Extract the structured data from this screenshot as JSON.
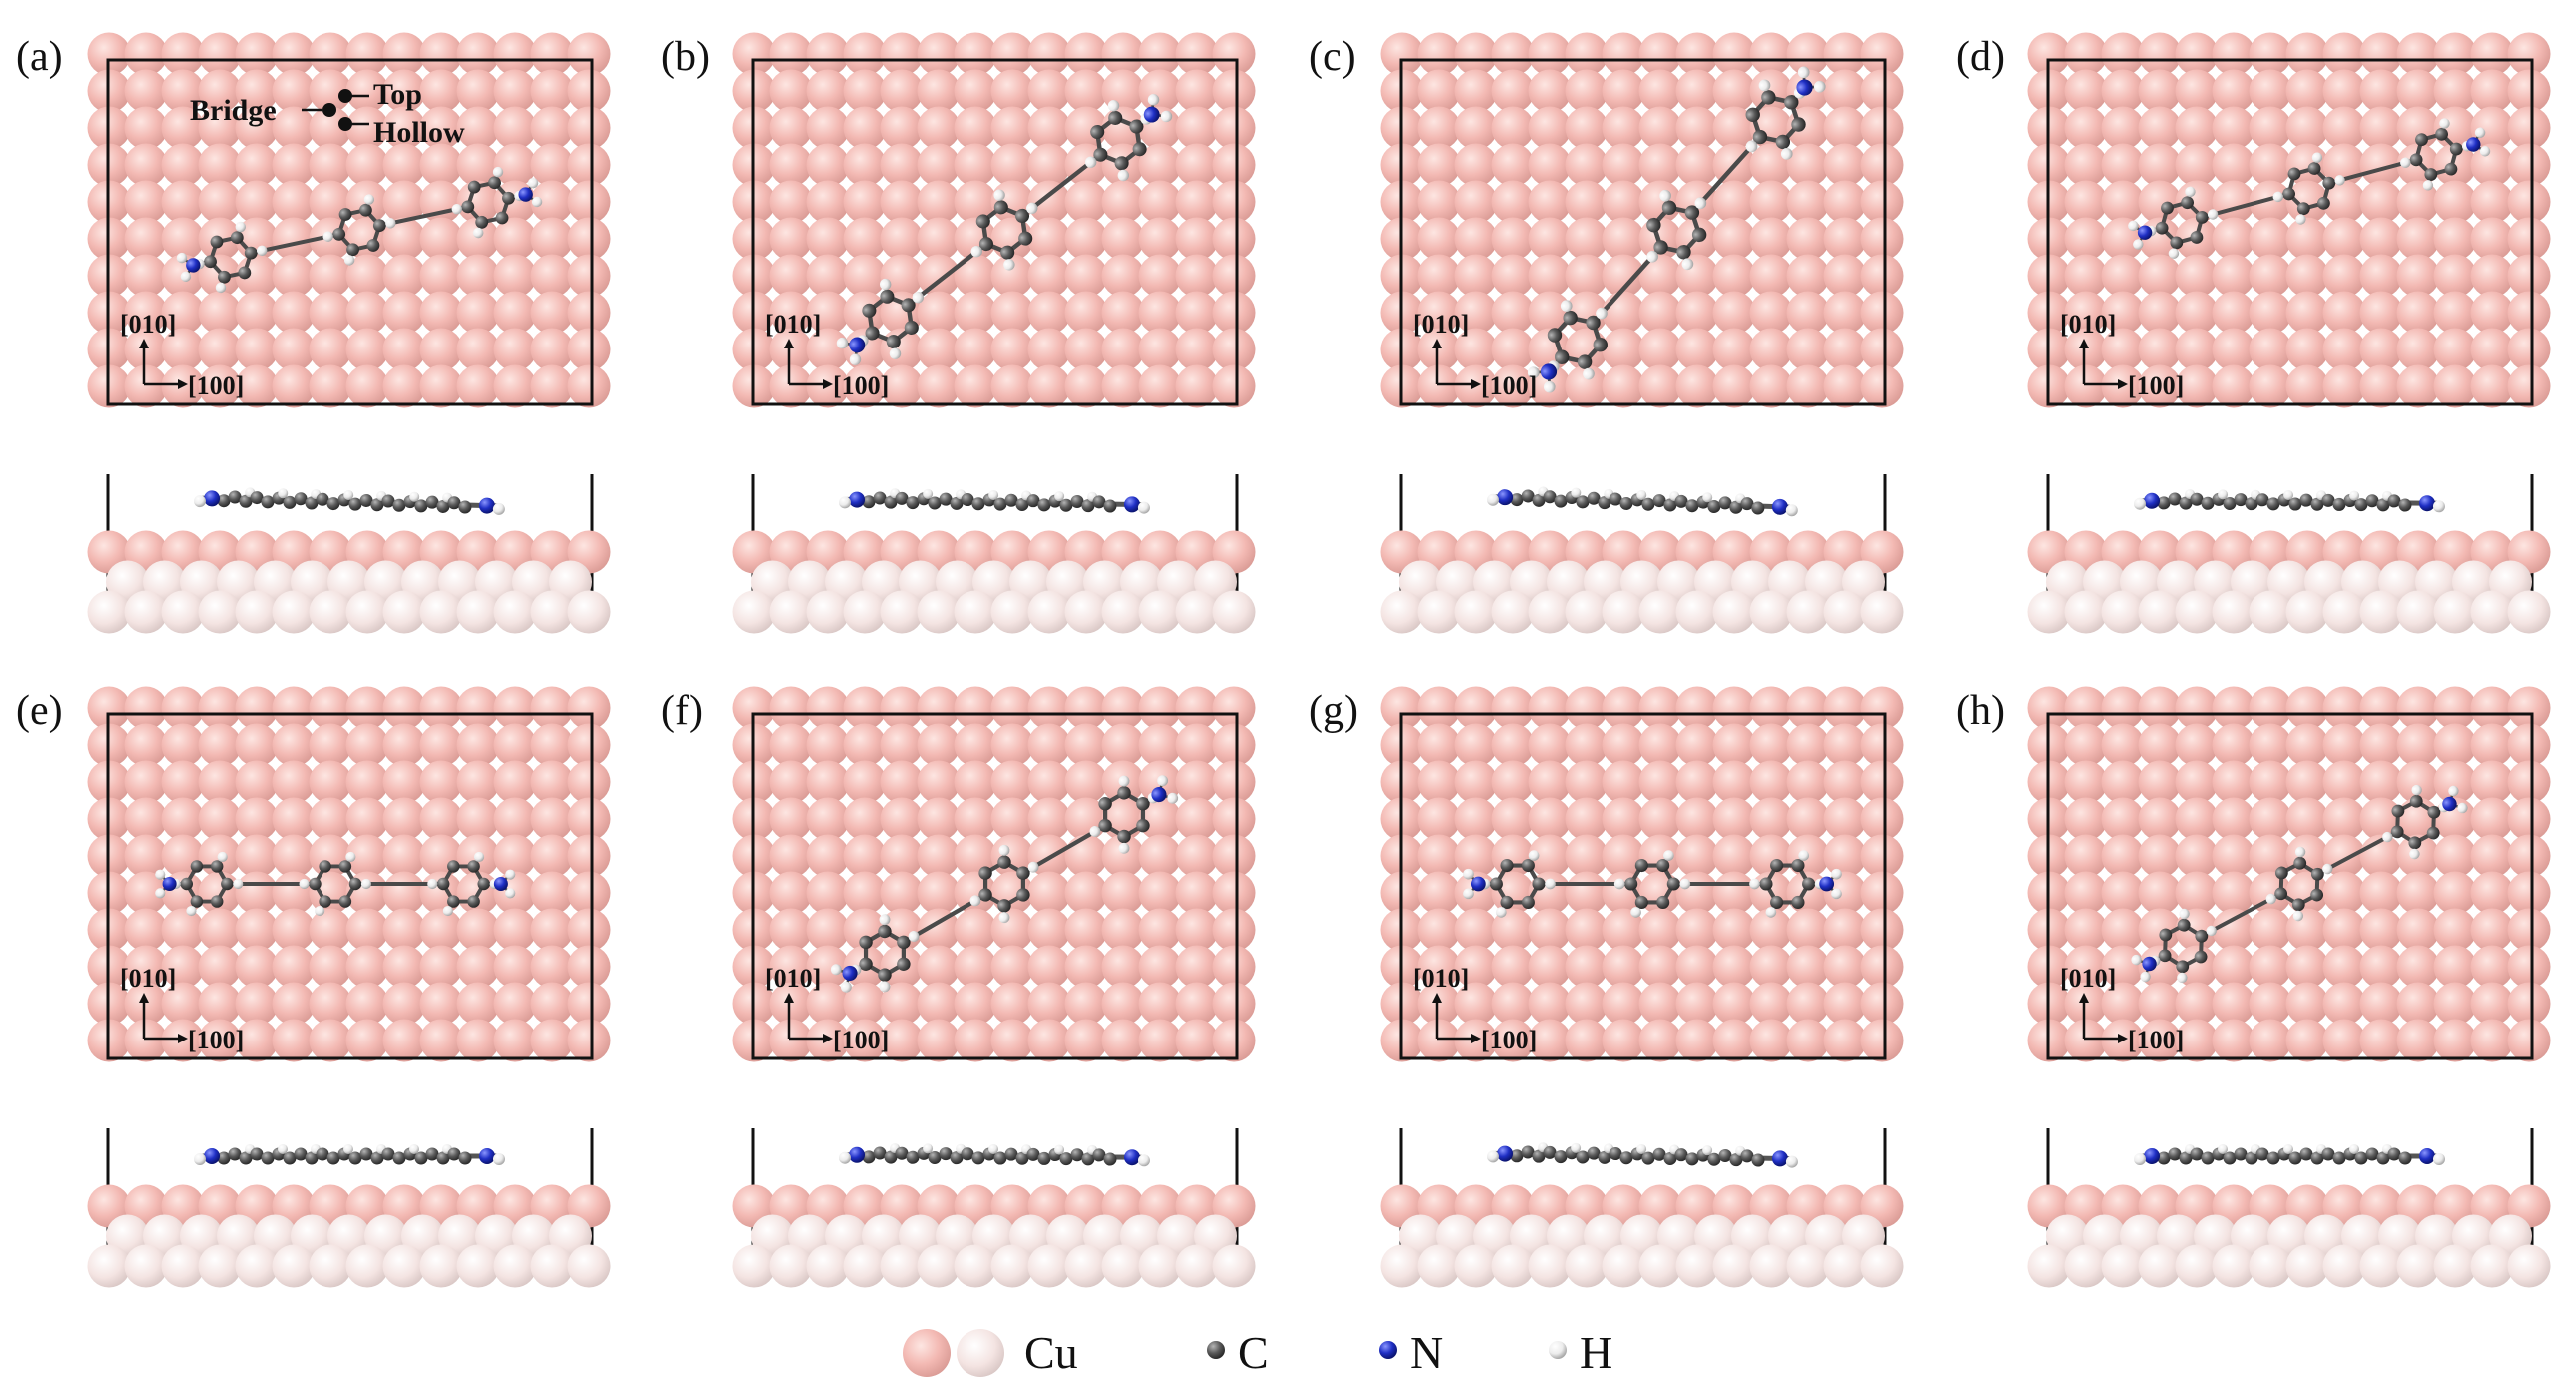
{
  "panels": [
    {
      "label": "(a)",
      "angle": -12,
      "dx": 0,
      "dy": 0,
      "length": 0.8,
      "side_tilt": 3,
      "site_labels": true
    },
    {
      "label": "(b)",
      "angle": -38,
      "dx": 0,
      "dy": 0,
      "length": 0.88,
      "side_tilt": 2,
      "site_labels": false
    },
    {
      "label": "(c)",
      "angle": -48,
      "dx": 0.05,
      "dy": 0,
      "length": 0.9,
      "side_tilt": 4,
      "site_labels": false
    },
    {
      "label": "(d)",
      "angle": -15,
      "dx": 0.02,
      "dy": -0.12,
      "length": 0.8,
      "side_tilt": 1,
      "site_labels": false
    },
    {
      "label": "(e)",
      "angle": 0,
      "dx": -0.05,
      "dy": 0,
      "length": 0.78,
      "side_tilt": 0,
      "site_labels": false
    },
    {
      "label": "(f)",
      "angle": -30,
      "dx": 0,
      "dy": 0,
      "length": 0.84,
      "side_tilt": 1,
      "site_labels": false
    },
    {
      "label": "(g)",
      "angle": 0,
      "dx": 0,
      "dy": 0,
      "length": 0.82,
      "side_tilt": 2,
      "site_labels": false
    },
    {
      "label": "(h)",
      "angle": -28,
      "dx": 0,
      "dy": 0,
      "length": 0.8,
      "side_tilt": 0,
      "site_labels": false
    }
  ],
  "axes": {
    "y_label": "[010]",
    "x_label": "[100]"
  },
  "sites": {
    "top": "Top",
    "bridge": "Bridge",
    "hollow": "Hollow"
  },
  "legend": [
    {
      "symbol": "cu-pair",
      "label": "Cu"
    },
    {
      "symbol": "c",
      "label": "C"
    },
    {
      "symbol": "n",
      "label": "N"
    },
    {
      "symbol": "h",
      "label": "H"
    }
  ],
  "colors": {
    "cu_top": "#f3b9b3",
    "cu_sub": "#f6e6e4",
    "carbon": "#5a5a5a",
    "nitrogen": "#1f2fc4",
    "hydrogen": "#f2f2f2",
    "cell": "#111111"
  }
}
